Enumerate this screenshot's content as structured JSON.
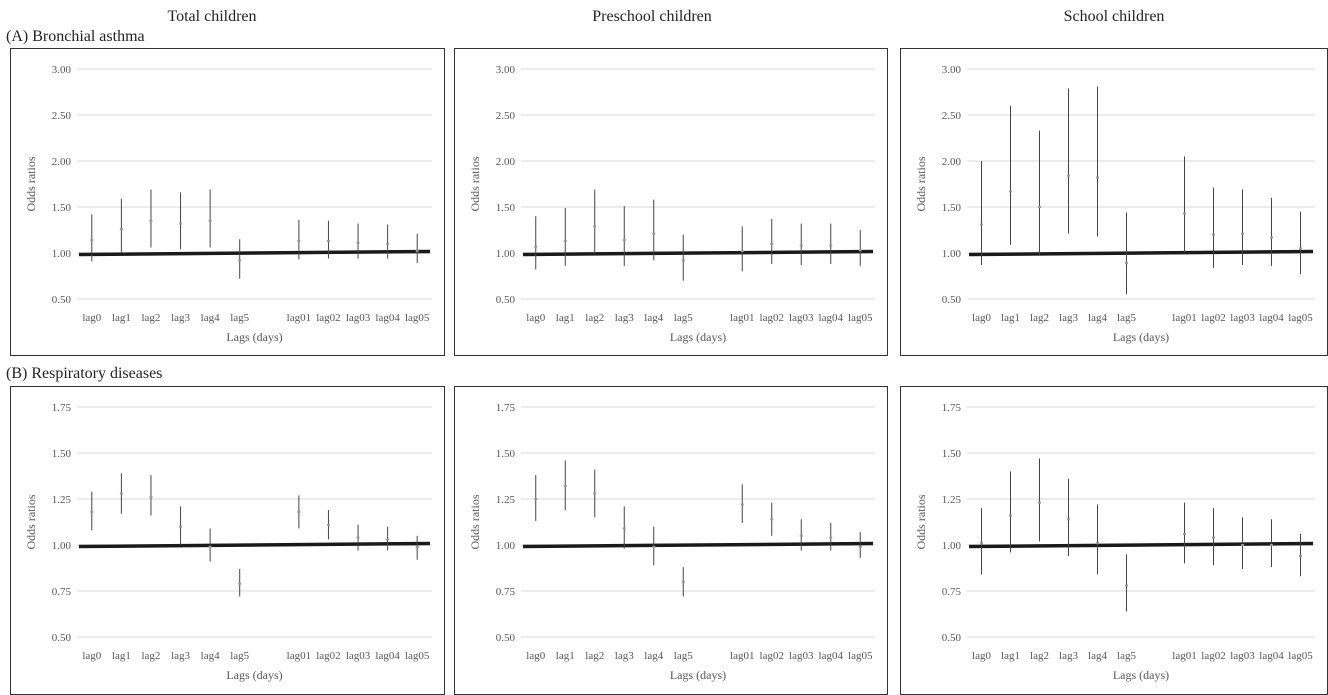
{
  "column_titles": [
    "Total children",
    "Preschool children",
    "School children"
  ],
  "section_labels": [
    "(A) Bronchial asthma",
    "(B) Respiratory diseases"
  ],
  "chart_data": [
    {
      "type": "errorbar",
      "section": "(A) Bronchial asthma",
      "group": "Total children",
      "xlabel": "Lags (days)",
      "ylabel": "Odds ratios",
      "ylim": [
        0.5,
        3.0
      ],
      "yticks": [
        "0.50",
        "1.00",
        "1.50",
        "2.00",
        "2.50",
        "3.00"
      ],
      "reference_line": 1.0,
      "categories": [
        "lag0",
        "lag1",
        "lag2",
        "lag3",
        "lag4",
        "lag5",
        "lag01",
        "lag02",
        "lag03",
        "lag04",
        "lag05"
      ],
      "or": [
        1.14,
        1.26,
        1.35,
        1.32,
        1.35,
        0.92,
        1.13,
        1.13,
        1.11,
        1.1,
        1.02
      ],
      "lower": [
        0.91,
        1.0,
        1.06,
        1.04,
        1.06,
        0.72,
        0.93,
        0.94,
        0.94,
        0.94,
        0.89
      ],
      "upper": [
        1.42,
        1.59,
        1.69,
        1.66,
        1.69,
        1.15,
        1.36,
        1.35,
        1.32,
        1.31,
        1.21
      ]
    },
    {
      "type": "errorbar",
      "section": "(A) Bronchial asthma",
      "group": "Preschool children",
      "xlabel": "Lags (days)",
      "ylabel": "Odds ratios",
      "ylim": [
        0.5,
        3.0
      ],
      "yticks": [
        "0.50",
        "1.00",
        "1.50",
        "2.00",
        "2.50",
        "3.00"
      ],
      "reference_line": 1.0,
      "categories": [
        "lag0",
        "lag1",
        "lag2",
        "lag3",
        "lag4",
        "lag5",
        "lag01",
        "lag02",
        "lag03",
        "lag04",
        "lag05"
      ],
      "or": [
        1.07,
        1.13,
        1.29,
        1.14,
        1.21,
        0.92,
        1.02,
        1.1,
        1.08,
        1.08,
        1.03
      ],
      "lower": [
        0.82,
        0.86,
        0.99,
        0.86,
        0.92,
        0.7,
        0.8,
        0.88,
        0.87,
        0.88,
        0.86
      ],
      "upper": [
        1.4,
        1.49,
        1.69,
        1.51,
        1.58,
        1.2,
        1.29,
        1.37,
        1.32,
        1.32,
        1.25
      ]
    },
    {
      "type": "errorbar",
      "section": "(A) Bronchial asthma",
      "group": "School children",
      "xlabel": "Lags (days)",
      "ylabel": "Odds ratios",
      "ylim": [
        0.5,
        3.0
      ],
      "yticks": [
        "0.50",
        "1.00",
        "1.50",
        "2.00",
        "2.50",
        "3.00"
      ],
      "reference_line": 1.0,
      "categories": [
        "lag0",
        "lag1",
        "lag2",
        "lag3",
        "lag4",
        "lag5",
        "lag01",
        "lag02",
        "lag03",
        "lag04",
        "lag05"
      ],
      "or": [
        1.31,
        1.67,
        1.5,
        1.84,
        1.82,
        0.89,
        1.43,
        1.2,
        1.21,
        1.17,
        1.05
      ],
      "lower": [
        0.87,
        1.09,
        0.97,
        1.21,
        1.18,
        0.55,
        1.0,
        0.84,
        0.87,
        0.86,
        0.77
      ],
      "upper": [
        2.0,
        2.6,
        2.33,
        2.79,
        2.81,
        1.44,
        2.05,
        1.71,
        1.69,
        1.6,
        1.45
      ]
    },
    {
      "type": "errorbar",
      "section": "(B) Respiratory diseases",
      "group": "Total children",
      "xlabel": "Lags (days)",
      "ylabel": "Odds ratios",
      "ylim": [
        0.5,
        1.75
      ],
      "yticks": [
        "0.50",
        "0.75",
        "1.00",
        "1.25",
        "1.50",
        "1.75"
      ],
      "reference_line": 1.0,
      "categories": [
        "lag0",
        "lag1",
        "lag2",
        "lag3",
        "lag4",
        "lag5",
        "lag01",
        "lag02",
        "lag03",
        "lag04",
        "lag05"
      ],
      "or": [
        1.18,
        1.28,
        1.26,
        1.1,
        0.99,
        0.79,
        1.18,
        1.11,
        1.04,
        1.03,
        0.99
      ],
      "lower": [
        1.08,
        1.17,
        1.16,
        1.0,
        0.91,
        0.72,
        1.09,
        1.03,
        0.97,
        0.97,
        0.92
      ],
      "upper": [
        1.29,
        1.39,
        1.38,
        1.21,
        1.09,
        0.87,
        1.27,
        1.19,
        1.11,
        1.1,
        1.05
      ]
    },
    {
      "type": "errorbar",
      "section": "(B) Respiratory diseases",
      "group": "Preschool children",
      "xlabel": "Lags (days)",
      "ylabel": "Odds ratios",
      "ylim": [
        0.5,
        1.75
      ],
      "yticks": [
        "0.50",
        "0.75",
        "1.00",
        "1.25",
        "1.50",
        "1.75"
      ],
      "reference_line": 1.0,
      "categories": [
        "lag0",
        "lag1",
        "lag2",
        "lag3",
        "lag4",
        "lag5",
        "lag01",
        "lag02",
        "lag03",
        "lag04",
        "lag05"
      ],
      "or": [
        1.25,
        1.32,
        1.28,
        1.09,
        0.99,
        0.8,
        1.22,
        1.14,
        1.05,
        1.04,
        0.99
      ],
      "lower": [
        1.13,
        1.19,
        1.15,
        0.98,
        0.89,
        0.72,
        1.12,
        1.05,
        0.97,
        0.97,
        0.93
      ],
      "upper": [
        1.38,
        1.46,
        1.41,
        1.21,
        1.1,
        0.88,
        1.33,
        1.23,
        1.14,
        1.12,
        1.07
      ]
    },
    {
      "type": "errorbar",
      "section": "(B) Respiratory diseases",
      "group": "School children",
      "xlabel": "Lags (days)",
      "ylabel": "Odds ratios",
      "ylim": [
        0.5,
        1.75
      ],
      "yticks": [
        "0.50",
        "0.75",
        "1.00",
        "1.25",
        "1.50",
        "1.75"
      ],
      "reference_line": 1.0,
      "categories": [
        "lag0",
        "lag1",
        "lag2",
        "lag3",
        "lag4",
        "lag5",
        "lag01",
        "lag02",
        "lag03",
        "lag04",
        "lag05"
      ],
      "or": [
        1.01,
        1.16,
        1.23,
        1.14,
        1.01,
        0.78,
        1.06,
        1.04,
        1.0,
        1.0,
        0.94
      ],
      "lower": [
        0.84,
        0.96,
        1.02,
        0.94,
        0.84,
        0.64,
        0.9,
        0.89,
        0.87,
        0.88,
        0.83
      ],
      "upper": [
        1.2,
        1.4,
        1.47,
        1.36,
        1.22,
        0.95,
        1.23,
        1.2,
        1.15,
        1.14,
        1.06
      ]
    }
  ]
}
